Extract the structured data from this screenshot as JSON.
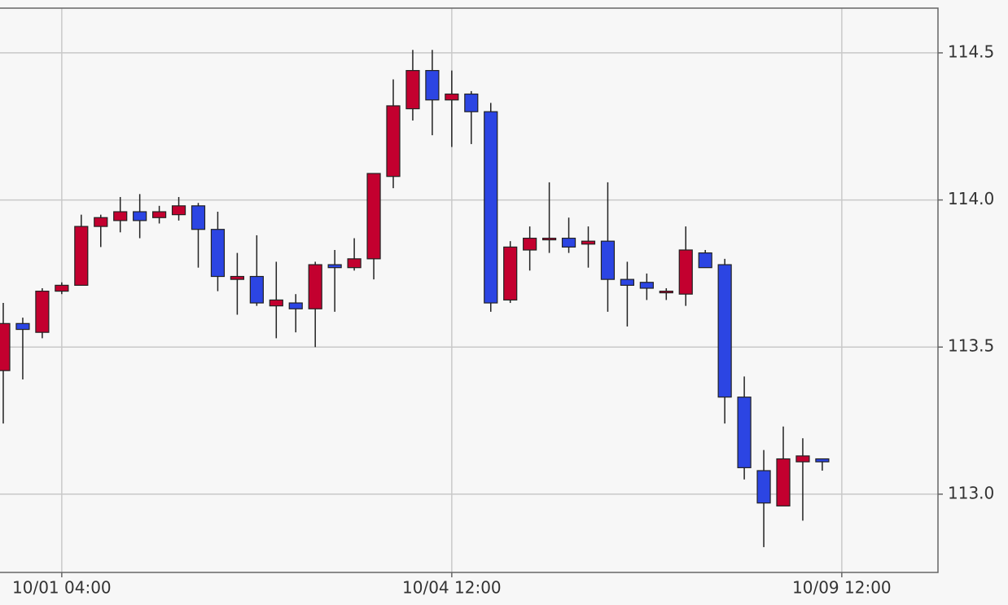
{
  "chart_data": {
    "type": "candlestick",
    "categories": [
      null,
      null,
      null,
      "10/01 04:00",
      null,
      null,
      null,
      null,
      null,
      null,
      null,
      null,
      null,
      null,
      null,
      null,
      null,
      null,
      null,
      null,
      null,
      null,
      null,
      "10/04 12:00",
      null,
      null,
      null,
      null,
      null,
      null,
      null,
      null,
      null,
      null,
      null,
      null,
      null,
      null,
      null,
      null,
      null,
      null,
      null,
      "10/09 12:00"
    ],
    "open": [
      113.42,
      113.58,
      113.55,
      113.69,
      113.71,
      113.91,
      113.93,
      113.96,
      113.94,
      113.95,
      113.98,
      113.9,
      113.73,
      113.74,
      113.64,
      113.65,
      113.63,
      113.78,
      113.77,
      113.8,
      114.08,
      114.31,
      114.44,
      114.34,
      114.36,
      114.3,
      113.66,
      113.83,
      113.87,
      113.87,
      113.85,
      113.86,
      113.73,
      113.72,
      113.69,
      113.68,
      113.82,
      113.78,
      113.33,
      113.08,
      112.96,
      113.11,
      113.12,
      null
    ],
    "high": [
      113.65,
      113.6,
      113.7,
      113.72,
      113.95,
      113.95,
      114.01,
      114.02,
      113.98,
      114.01,
      113.99,
      113.96,
      113.82,
      113.88,
      113.79,
      113.68,
      113.79,
      113.83,
      113.87,
      114.09,
      114.41,
      114.51,
      114.51,
      114.44,
      114.37,
      114.33,
      113.86,
      113.91,
      114.06,
      113.94,
      113.91,
      114.06,
      113.79,
      113.75,
      113.7,
      113.91,
      113.83,
      113.8,
      113.4,
      113.15,
      113.23,
      113.19,
      113.12,
      null
    ],
    "low": [
      113.24,
      113.39,
      113.53,
      113.68,
      113.71,
      113.84,
      113.89,
      113.87,
      113.92,
      113.93,
      113.77,
      113.69,
      113.61,
      113.64,
      113.53,
      113.55,
      113.5,
      113.62,
      113.76,
      113.73,
      114.04,
      114.27,
      114.22,
      114.18,
      114.19,
      113.62,
      113.65,
      113.76,
      113.82,
      113.82,
      113.77,
      113.62,
      113.57,
      113.66,
      113.66,
      113.64,
      113.77,
      113.24,
      113.05,
      112.82,
      112.96,
      112.91,
      113.08,
      null
    ],
    "close": [
      113.58,
      113.56,
      113.69,
      113.71,
      113.91,
      113.94,
      113.96,
      113.93,
      113.96,
      113.98,
      113.9,
      113.74,
      113.74,
      113.65,
      113.66,
      113.63,
      113.78,
      113.77,
      113.8,
      114.09,
      114.32,
      114.44,
      114.34,
      114.36,
      114.3,
      113.65,
      113.84,
      113.87,
      113.87,
      113.84,
      113.86,
      113.73,
      113.71,
      113.7,
      113.69,
      113.83,
      113.77,
      113.33,
      113.09,
      112.97,
      113.12,
      113.13,
      113.11,
      null
    ],
    "up_color": "#c3002f",
    "down_color": "#2c45e3",
    "ylim": [
      112.734,
      114.652
    ],
    "yticks": [
      {
        "value": 113,
        "label": "113.0"
      },
      113.5,
      {
        "value": 114,
        "label": "114.0"
      },
      114.5
    ],
    "grid": true
  }
}
